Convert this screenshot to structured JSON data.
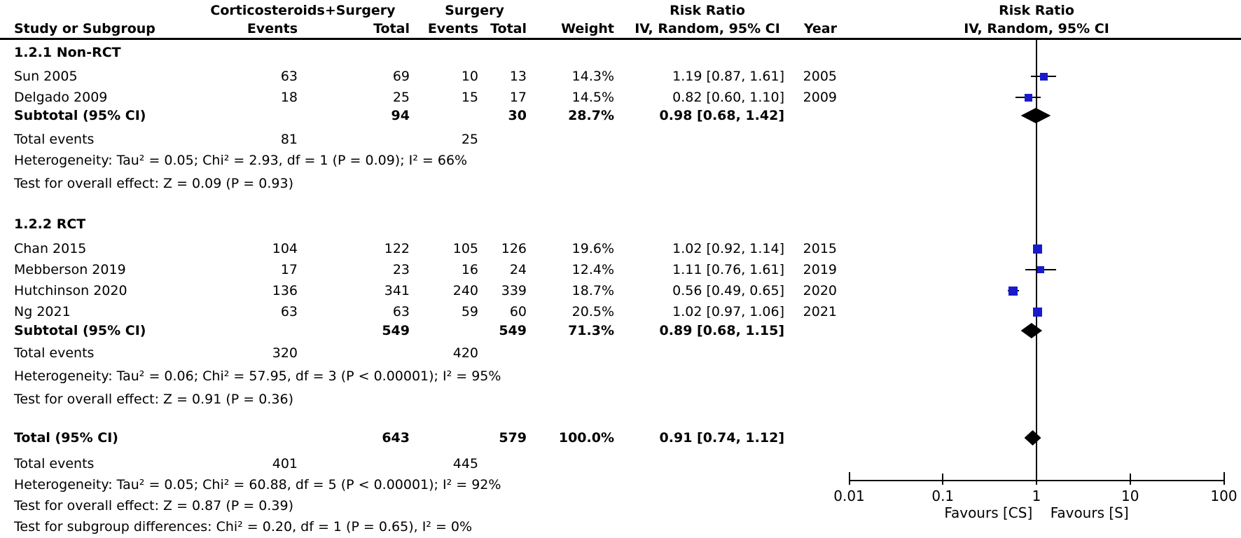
{
  "header": {
    "group1": "Corticosteroids+Surgery",
    "group2": "Surgery",
    "risk_ratio": "Risk Ratio",
    "method": "IV, Random, 95% CI",
    "study": "Study or Subgroup",
    "events": "Events",
    "total": "Total",
    "weight": "Weight",
    "year": "Year"
  },
  "subgroups": [
    {
      "title": "1.2.1 Non-RCT",
      "studies": [
        {
          "name": "Sun 2005",
          "e1": "63",
          "t1": "69",
          "e2": "10",
          "t2": "13",
          "weight": "14.3%",
          "w": 14.3,
          "ci": "1.19 [0.87, 1.61]",
          "rr": 1.19,
          "lo": 0.87,
          "hi": 1.61,
          "year": "2005"
        },
        {
          "name": "Delgado 2009",
          "e1": "18",
          "t1": "25",
          "e2": "15",
          "t2": "17",
          "weight": "14.5%",
          "w": 14.5,
          "ci": "0.82 [0.60, 1.10]",
          "rr": 0.82,
          "lo": 0.6,
          "hi": 1.1,
          "year": "2009"
        }
      ],
      "subtotal": {
        "label": "Subtotal (95% CI)",
        "t1": "94",
        "t2": "30",
        "weight": "28.7%",
        "ci": "0.98 [0.68, 1.42]",
        "rr": 0.98,
        "lo": 0.68,
        "hi": 1.42
      },
      "total_events": {
        "label": "Total events",
        "e1": "81",
        "e2": "25"
      },
      "heterogeneity": "Heterogeneity: Tau² = 0.05; Chi² = 2.93, df = 1 (P = 0.09); I² = 66%",
      "overall": "Test for overall effect: Z = 0.09 (P = 0.93)"
    },
    {
      "title": "1.2.2 RCT",
      "studies": [
        {
          "name": "Chan 2015",
          "e1": "104",
          "t1": "122",
          "e2": "105",
          "t2": "126",
          "weight": "19.6%",
          "w": 19.6,
          "ci": "1.02 [0.92, 1.14]",
          "rr": 1.02,
          "lo": 0.92,
          "hi": 1.14,
          "year": "2015"
        },
        {
          "name": "Mebberson 2019",
          "e1": "17",
          "t1": "23",
          "e2": "16",
          "t2": "24",
          "weight": "12.4%",
          "w": 12.4,
          "ci": "1.11 [0.76, 1.61]",
          "rr": 1.11,
          "lo": 0.76,
          "hi": 1.61,
          "year": "2019"
        },
        {
          "name": "Hutchinson 2020",
          "e1": "136",
          "t1": "341",
          "e2": "240",
          "t2": "339",
          "weight": "18.7%",
          "w": 18.7,
          "ci": "0.56 [0.49, 0.65]",
          "rr": 0.56,
          "lo": 0.49,
          "hi": 0.65,
          "year": "2020"
        },
        {
          "name": "Ng 2021",
          "e1": "63",
          "t1": "63",
          "e2": "59",
          "t2": "60",
          "weight": "20.5%",
          "w": 20.5,
          "ci": "1.02 [0.97, 1.06]",
          "rr": 1.02,
          "lo": 0.97,
          "hi": 1.06,
          "year": "2021"
        }
      ],
      "subtotal": {
        "label": "Subtotal (95% CI)",
        "t1": "549",
        "t2": "549",
        "weight": "71.3%",
        "ci": "0.89 [0.68, 1.15]",
        "rr": 0.89,
        "lo": 0.68,
        "hi": 1.15
      },
      "total_events": {
        "label": "Total events",
        "e1": "320",
        "e2": "420"
      },
      "heterogeneity": "Heterogeneity: Tau² = 0.06; Chi² = 57.95, df = 3 (P < 0.00001); I² = 95%",
      "overall": "Test for overall effect: Z = 0.91 (P = 0.36)"
    }
  ],
  "total": {
    "row": {
      "label": "Total (95% CI)",
      "t1": "643",
      "t2": "579",
      "weight": "100.0%",
      "ci": "0.91 [0.74, 1.12]",
      "rr": 0.91,
      "lo": 0.74,
      "hi": 1.12
    },
    "total_events": {
      "label": "Total events",
      "e1": "401",
      "e2": "445"
    },
    "heterogeneity": "Heterogeneity: Tau² = 0.05; Chi² = 60.88, df = 5 (P < 0.00001); I² = 92%",
    "overall": "Test for overall effect: Z = 0.87 (P = 0.39)",
    "subgroup_diff": "Test for subgroup differences: Chi² = 0.20, df = 1 (P = 0.65), I² = 0%"
  },
  "axis": {
    "ticks": [
      "0.01",
      "0.1",
      "1",
      "10",
      "100"
    ],
    "favours_left": "Favours [CS]",
    "favours_right": "Favours [S]"
  },
  "colors": {
    "marker": "#1a1acd",
    "diamond": "#000000",
    "line": "#000000"
  },
  "chart_data": {
    "type": "scatter",
    "subtype": "forest-plot",
    "title": "Risk Ratio IV, Random, 95% CI",
    "x_scale": "log",
    "x_ticks": [
      0.01,
      0.1,
      1,
      10,
      100
    ],
    "xlim": [
      0.01,
      100
    ],
    "null_line": 1,
    "xlabel": "Favours [CS]  Favours [S]",
    "series": [
      {
        "name": "Sun 2005",
        "subgroup": "1.2.1 Non-RCT",
        "rr": 1.19,
        "ci_low": 0.87,
        "ci_high": 1.61,
        "weight_pct": 14.3,
        "year": 2005
      },
      {
        "name": "Delgado 2009",
        "subgroup": "1.2.1 Non-RCT",
        "rr": 0.82,
        "ci_low": 0.6,
        "ci_high": 1.1,
        "weight_pct": 14.5,
        "year": 2009
      },
      {
        "name": "Chan 2015",
        "subgroup": "1.2.2 RCT",
        "rr": 1.02,
        "ci_low": 0.92,
        "ci_high": 1.14,
        "weight_pct": 19.6,
        "year": 2015
      },
      {
        "name": "Mebberson 2019",
        "subgroup": "1.2.2 RCT",
        "rr": 1.11,
        "ci_low": 0.76,
        "ci_high": 1.61,
        "weight_pct": 12.4,
        "year": 2019
      },
      {
        "name": "Hutchinson 2020",
        "subgroup": "1.2.2 RCT",
        "rr": 0.56,
        "ci_low": 0.49,
        "ci_high": 0.65,
        "weight_pct": 18.7,
        "year": 2020
      },
      {
        "name": "Ng 2021",
        "subgroup": "1.2.2 RCT",
        "rr": 1.02,
        "ci_low": 0.97,
        "ci_high": 1.06,
        "weight_pct": 20.5,
        "year": 2021
      }
    ],
    "subtotals": [
      {
        "name": "Subtotal 1.2.1 Non-RCT",
        "rr": 0.98,
        "ci_low": 0.68,
        "ci_high": 1.42,
        "weight_pct": 28.7
      },
      {
        "name": "Subtotal 1.2.2 RCT",
        "rr": 0.89,
        "ci_low": 0.68,
        "ci_high": 1.15,
        "weight_pct": 71.3
      }
    ],
    "overall": {
      "name": "Total (95% CI)",
      "rr": 0.91,
      "ci_low": 0.74,
      "ci_high": 1.12,
      "weight_pct": 100.0
    }
  }
}
